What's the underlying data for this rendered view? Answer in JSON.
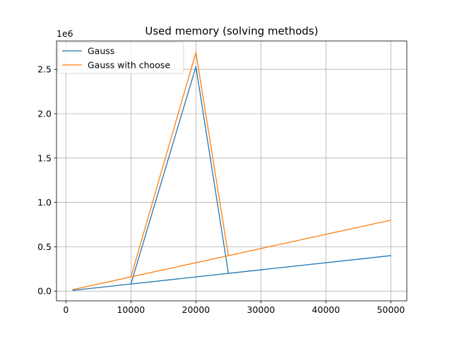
{
  "chart_data": {
    "type": "line",
    "title": "Used memory (solving methods)",
    "xlabel": "",
    "ylabel": "",
    "y_offset_label": "1e6",
    "xlim": [
      -1450,
      52450
    ],
    "ylim": [
      -110000,
      2820000
    ],
    "xticks": [
      0,
      10000,
      20000,
      30000,
      40000,
      50000
    ],
    "xtick_labels": [
      "0",
      "10000",
      "20000",
      "30000",
      "40000",
      "50000"
    ],
    "yticks": [
      0,
      500000,
      1000000,
      1500000,
      2000000,
      2500000
    ],
    "ytick_labels": [
      "0.0",
      "0.5",
      "1.0",
      "1.5",
      "2.0",
      "2.5"
    ],
    "grid": true,
    "legend_position": "upper-left",
    "series": [
      {
        "name": "Gauss",
        "color": "#1f77b4",
        "x": [
          1000,
          10000,
          20000,
          25000,
          50000,
          1000
        ],
        "y": [
          8000,
          80000,
          2530000,
          200000,
          400000,
          8000
        ]
      },
      {
        "name": "Gauss with choose",
        "color": "#ff7f0e",
        "x": [
          1000,
          10000,
          20000,
          25000,
          50000,
          1000
        ],
        "y": [
          16000,
          160000,
          2690000,
          400000,
          800000,
          16000
        ]
      }
    ]
  }
}
